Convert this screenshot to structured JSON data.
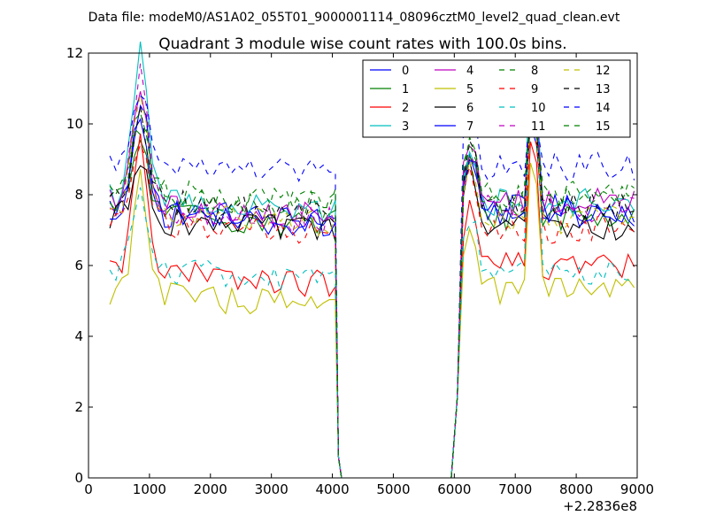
{
  "chart_data": {
    "type": "line",
    "suptitle": "Data file: modeM0/AS1A02_055T01_9000001114_08096cztM0_level2_quad_clean.evt",
    "title": "Quadrant 3 module wise count rates with 100.0s bins.",
    "xlabel": "",
    "ylabel": "",
    "xlim": [
      0,
      9000
    ],
    "ylim": [
      0,
      12
    ],
    "x_ticks": [
      "0",
      "1000",
      "2000",
      "3000",
      "4000",
      "5000",
      "6000",
      "7000",
      "8000",
      "9000"
    ],
    "y_ticks": [
      "0",
      "2",
      "4",
      "6",
      "8",
      "10",
      "12"
    ],
    "x_offset": "+2.2836e8",
    "legend_position": "top-right",
    "segments": [
      {
        "x_start": 350,
        "x_step": 100,
        "n": 38,
        "peak_x": 850
      },
      {
        "x_start": 4150,
        "x_step": 100,
        "n": 19,
        "flat_zero": true
      },
      {
        "x_start": 6050,
        "x_step": 100,
        "n": 30,
        "dip_x": 7300
      }
    ],
    "series": [
      {
        "name": "0",
        "color": "#0000ff",
        "dash": "solid",
        "base1": 7.3,
        "peak": 10.0,
        "base2": 7.6,
        "spike": 10.0
      },
      {
        "name": "1",
        "color": "#008000",
        "dash": "solid",
        "base1": 7.2,
        "peak": 9.3,
        "base2": 7.4,
        "spike": 10.2
      },
      {
        "name": "2",
        "color": "#ff0000",
        "dash": "solid",
        "base1": 5.5,
        "peak": 9.4,
        "base2": 6.0,
        "spike": 9.5
      },
      {
        "name": "3",
        "color": "#00bfbf",
        "dash": "solid",
        "base1": 7.6,
        "peak": 11.9,
        "base2": 7.8,
        "spike": 11.8
      },
      {
        "name": "4",
        "color": "#bf00bf",
        "dash": "solid",
        "base1": 7.4,
        "peak": 10.4,
        "base2": 7.8,
        "spike": 10.5
      },
      {
        "name": "5",
        "color": "#bfbf00",
        "dash": "solid",
        "base1": 4.9,
        "peak": 8.1,
        "base2": 5.3,
        "spike": 8.9
      },
      {
        "name": "6",
        "color": "#000000",
        "dash": "solid",
        "base1": 7.0,
        "peak": 8.9,
        "base2": 7.1,
        "spike": 10.2
      },
      {
        "name": "7",
        "color": "#0000ff",
        "dash": "solid",
        "base1": 7.2,
        "peak": 10.5,
        "base2": 7.5,
        "spike": 10.7
      },
      {
        "name": "8",
        "color": "#008000",
        "dash": "dashed",
        "base1": 7.8,
        "peak": 10.2,
        "base2": 8.0,
        "spike": 10.6
      },
      {
        "name": "9",
        "color": "#ff0000",
        "dash": "dashed",
        "base1": 6.9,
        "peak": 9.2,
        "base2": 7.0,
        "spike": 10.0
      },
      {
        "name": "10",
        "color": "#00bfbf",
        "dash": "dashed",
        "base1": 5.6,
        "peak": 7.9,
        "base2": 5.8,
        "spike": 11.4
      },
      {
        "name": "11",
        "color": "#bf00bf",
        "dash": "dashed",
        "base1": 7.3,
        "peak": 11.3,
        "base2": 7.6,
        "spike": 11.0
      },
      {
        "name": "12",
        "color": "#bfbf00",
        "dash": "dashed",
        "base1": 7.2,
        "peak": 10.3,
        "base2": 7.3,
        "spike": 10.2
      },
      {
        "name": "13",
        "color": "#000000",
        "dash": "dashed",
        "base1": 7.5,
        "peak": 9.9,
        "base2": 7.7,
        "spike": 10.4
      },
      {
        "name": "14",
        "color": "#0000ff",
        "dash": "dashed",
        "base1": 8.6,
        "peak": 10.9,
        "base2": 8.8,
        "spike": 10.6
      },
      {
        "name": "15",
        "color": "#008000",
        "dash": "dashed",
        "base1": 7.7,
        "peak": 9.7,
        "base2": 7.9,
        "spike": 10.3
      }
    ]
  }
}
